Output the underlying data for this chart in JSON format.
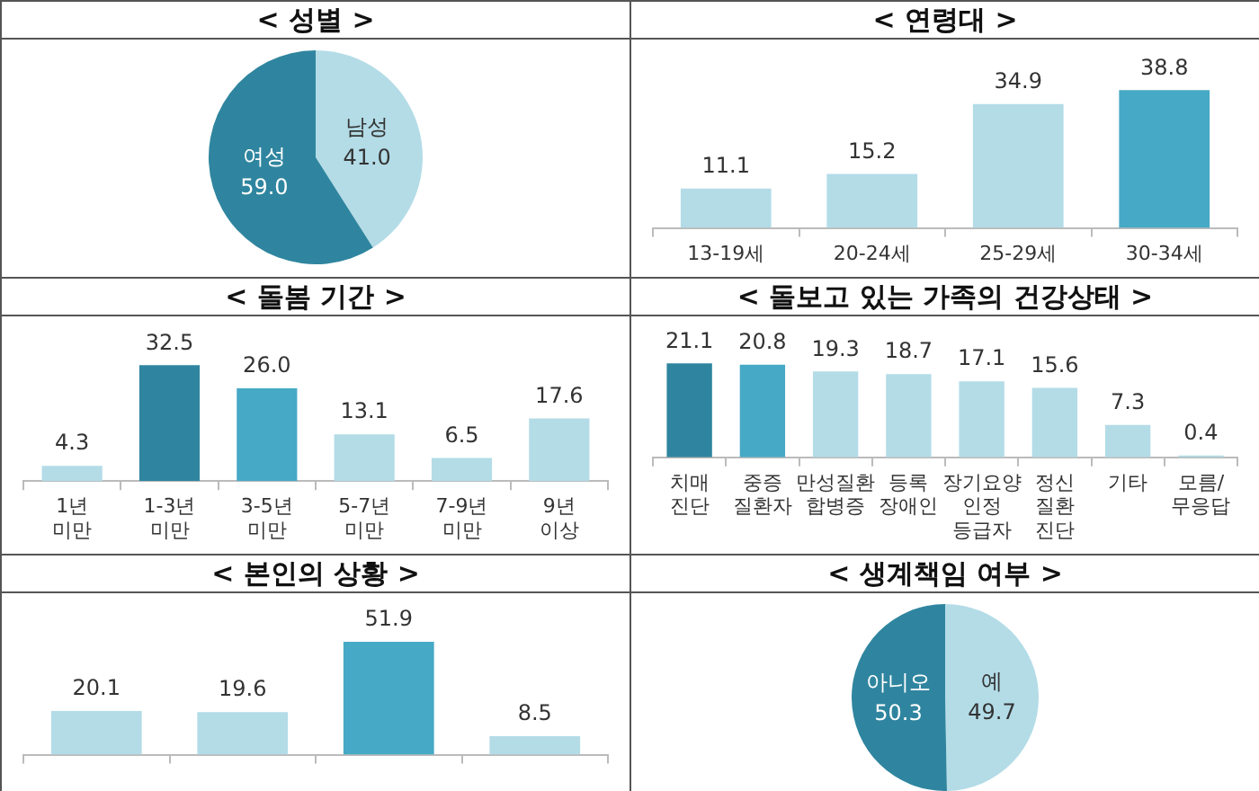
{
  "chart_data": [
    {
      "type": "pie",
      "title": "< 성별 >",
      "categories": [
        "남성",
        "여성"
      ],
      "values": [
        41.0,
        59.0
      ],
      "colors": [
        "#b3dce7",
        "#2f859f"
      ],
      "value_labels": [
        "41.0",
        "59.0"
      ]
    },
    {
      "type": "bar",
      "title": "< 연령대 >",
      "categories": [
        "13-19세",
        "20-24세",
        "25-29세",
        "30-34세"
      ],
      "values": [
        11.1,
        15.2,
        34.9,
        38.8
      ],
      "colors": [
        "#b3dce7",
        "#b3dce7",
        "#b3dce7",
        "#46a9c5"
      ],
      "value_labels": [
        "11.1",
        "15.2",
        "34.9",
        "38.8"
      ]
    },
    {
      "type": "bar",
      "title": "< 돌봄 기간 >",
      "categories": [
        "1년\n미만",
        "1-3년\n미만",
        "3-5년\n미만",
        "5-7년\n미만",
        "7-9년\n미만",
        "9년\n이상"
      ],
      "values": [
        4.3,
        32.5,
        26.0,
        13.1,
        6.5,
        17.6
      ],
      "colors": [
        "#b3dce7",
        "#2f859f",
        "#46a9c5",
        "#b3dce7",
        "#b3dce7",
        "#b3dce7"
      ],
      "value_labels": [
        "4.3",
        "32.5",
        "26.0",
        "13.1",
        "6.5",
        "17.6"
      ]
    },
    {
      "type": "bar",
      "title": "< 돌보고 있는 가족의 건강상태 >",
      "categories": [
        "치매\n진단",
        "중증\n질환자",
        "만성질환\n합병증",
        "등록\n장애인",
        "장기요양\n인정\n등급자",
        "정신\n질환\n진단",
        "기타",
        "모름/\n무응답"
      ],
      "values": [
        21.1,
        20.8,
        19.3,
        18.7,
        17.1,
        15.6,
        7.3,
        0.4
      ],
      "colors": [
        "#2f859f",
        "#46a9c5",
        "#b3dce7",
        "#b3dce7",
        "#b3dce7",
        "#b3dce7",
        "#b3dce7",
        "#b3dce7"
      ],
      "value_labels": [
        "21.1",
        "20.8",
        "19.3",
        "18.7",
        "17.1",
        "15.6",
        "7.3",
        "0.4"
      ]
    },
    {
      "type": "bar",
      "title": "< 본인의 상황 >",
      "categories": [
        null,
        null,
        null,
        null
      ],
      "values": [
        20.1,
        19.6,
        51.9,
        8.5
      ],
      "colors": [
        "#b3dce7",
        "#b3dce7",
        "#46a9c5",
        "#b3dce7"
      ],
      "value_labels": [
        "20.1",
        "19.6",
        "51.9",
        "8.5"
      ]
    },
    {
      "type": "pie",
      "title": "< 생계책임 여부 >",
      "categories": [
        "예",
        "아니오"
      ],
      "values": [
        49.7,
        50.3
      ],
      "colors": [
        "#b3dce7",
        "#2f859f"
      ],
      "value_labels": [
        "49.7",
        "50.3"
      ]
    }
  ]
}
